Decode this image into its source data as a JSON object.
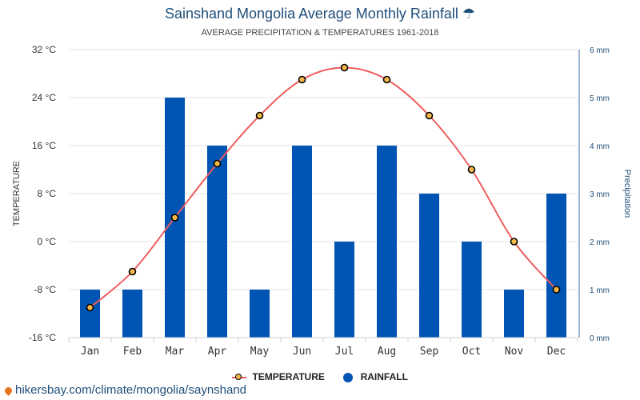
{
  "header": {
    "title": "Sainshand Mongolia Average Monthly Rainfall ☂",
    "subtitle": "AVERAGE PRECIPITATION & TEMPERATURES 1961-2018"
  },
  "legend": {
    "temperature": "TEMPERATURE",
    "rainfall": "RAINFALL"
  },
  "source": "hikersbay.com/climate/mongolia/saynshand",
  "colors": {
    "bar": "#0054b4",
    "line": "#ee5c5c",
    "marker": "#f6b84a",
    "title": "#1f4e79"
  },
  "chart_data": {
    "type": "bar",
    "categories": [
      "Jan",
      "Feb",
      "Mar",
      "Apr",
      "May",
      "Jun",
      "Jul",
      "Aug",
      "Sep",
      "Oct",
      "Nov",
      "Dec"
    ],
    "series": [
      {
        "name": "RAINFALL",
        "type": "bar",
        "axis": "right",
        "values": [
          1,
          1,
          5,
          4,
          1,
          4,
          2,
          4,
          3,
          2,
          1,
          3
        ]
      },
      {
        "name": "TEMPERATURE",
        "type": "line",
        "axis": "left",
        "values": [
          -11,
          -5,
          4,
          13,
          21,
          27,
          29,
          27,
          21,
          12,
          0,
          -8
        ]
      }
    ],
    "y_left": {
      "label": "TEMPERATURE",
      "ticks": [
        "32 °C",
        "24 °C",
        "16 °C",
        "8 °C",
        "0 °C",
        "-8 °C",
        "-16 °C"
      ],
      "range": [
        -16,
        32
      ]
    },
    "y_right": {
      "label": "Precipitation",
      "ticks": [
        "6 mm",
        "5 mm",
        "4 mm",
        "3 mm",
        "2 mm",
        "1 mm",
        "0 mm"
      ],
      "range": [
        0,
        6
      ]
    },
    "grid": true,
    "legend_position": "bottom"
  }
}
